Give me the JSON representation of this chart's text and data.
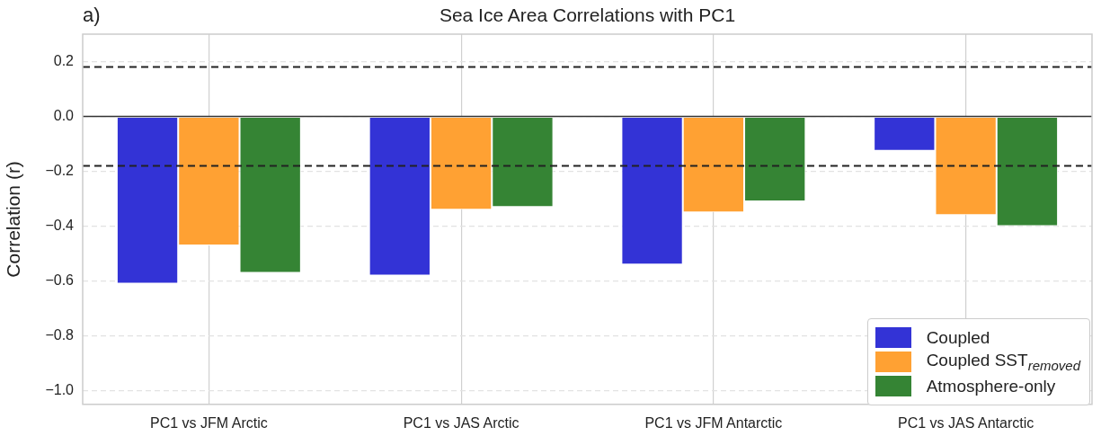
{
  "chart_data": {
    "type": "bar",
    "title": "Sea Ice Area Correlations with PC1",
    "ylabel": "Correlation (r)",
    "categories": [
      "PC1 vs JFM Arctic",
      "PC1 vs JAS Arctic",
      "PC1 vs JFM Antarctic",
      "PC1 vs JAS Antarctic"
    ],
    "series": [
      {
        "name": "Coupled",
        "color": "#3333d6",
        "values": [
          -0.61,
          -0.58,
          -0.54,
          -0.125
        ]
      },
      {
        "name": "Coupled SST$_{removed}$",
        "color": "#ffa133",
        "values": [
          -0.47,
          -0.34,
          -0.35,
          -0.36
        ]
      },
      {
        "name": "Atmosphere-only",
        "color": "#358434",
        "values": [
          -0.57,
          -0.33,
          -0.31,
          -0.4
        ]
      }
    ],
    "ylim": [
      -1.05,
      0.3
    ],
    "yticks": [
      {
        "value": -1.0,
        "label": "−1.0"
      },
      {
        "value": -0.8,
        "label": "−0.8"
      },
      {
        "value": -0.6,
        "label": "−0.6"
      },
      {
        "value": -0.4,
        "label": "−0.4"
      },
      {
        "value": -0.2,
        "label": "−0.2"
      },
      {
        "value": 0.0,
        "label": "0.0"
      },
      {
        "value": 0.2,
        "label": "0.2"
      }
    ],
    "ref_lines": [
      {
        "axis": "y",
        "value": 0,
        "color": "#333333",
        "line_style": "solid"
      },
      {
        "axis": "y",
        "value": 0.18,
        "color": "#222222",
        "line_style": "dashed"
      },
      {
        "axis": "y",
        "value": -0.18,
        "color": "#222222",
        "line_style": "dashed"
      }
    ],
    "annotations": [
      "a)"
    ],
    "grid": true,
    "legend": "bottom right"
  }
}
